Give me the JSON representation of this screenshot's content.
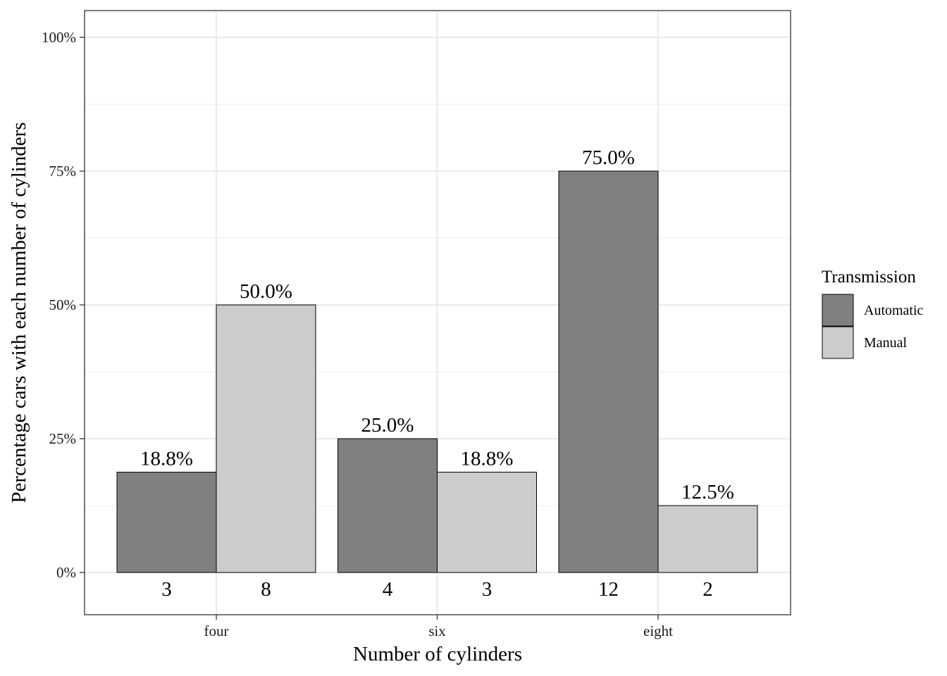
{
  "chart_data": {
    "type": "bar",
    "xlabel": "Number of cylinders",
    "ylabel": "Percentage cars with each number of cylinders",
    "categories": [
      "four",
      "six",
      "eight"
    ],
    "ylim": [
      0,
      1
    ],
    "yticks": [
      0,
      0.25,
      0.5,
      0.75,
      1.0
    ],
    "ytick_labels": [
      "0%",
      "25%",
      "50%",
      "75%",
      "100%"
    ],
    "grid": true,
    "legend": {
      "title": "Transmission",
      "position": "right"
    },
    "series": [
      {
        "name": "Automatic",
        "color": "#808080",
        "values": [
          0.1875,
          0.25,
          0.75
        ],
        "labels": [
          "18.8%",
          "25.0%",
          "75.0%"
        ],
        "counts": [
          "3",
          "4",
          "12"
        ]
      },
      {
        "name": "Manual",
        "color": "#cccccc",
        "values": [
          0.5,
          0.1875,
          0.125
        ],
        "labels": [
          "50.0%",
          "18.8%",
          "12.5%"
        ],
        "counts": [
          "8",
          "3",
          "2"
        ]
      }
    ]
  }
}
